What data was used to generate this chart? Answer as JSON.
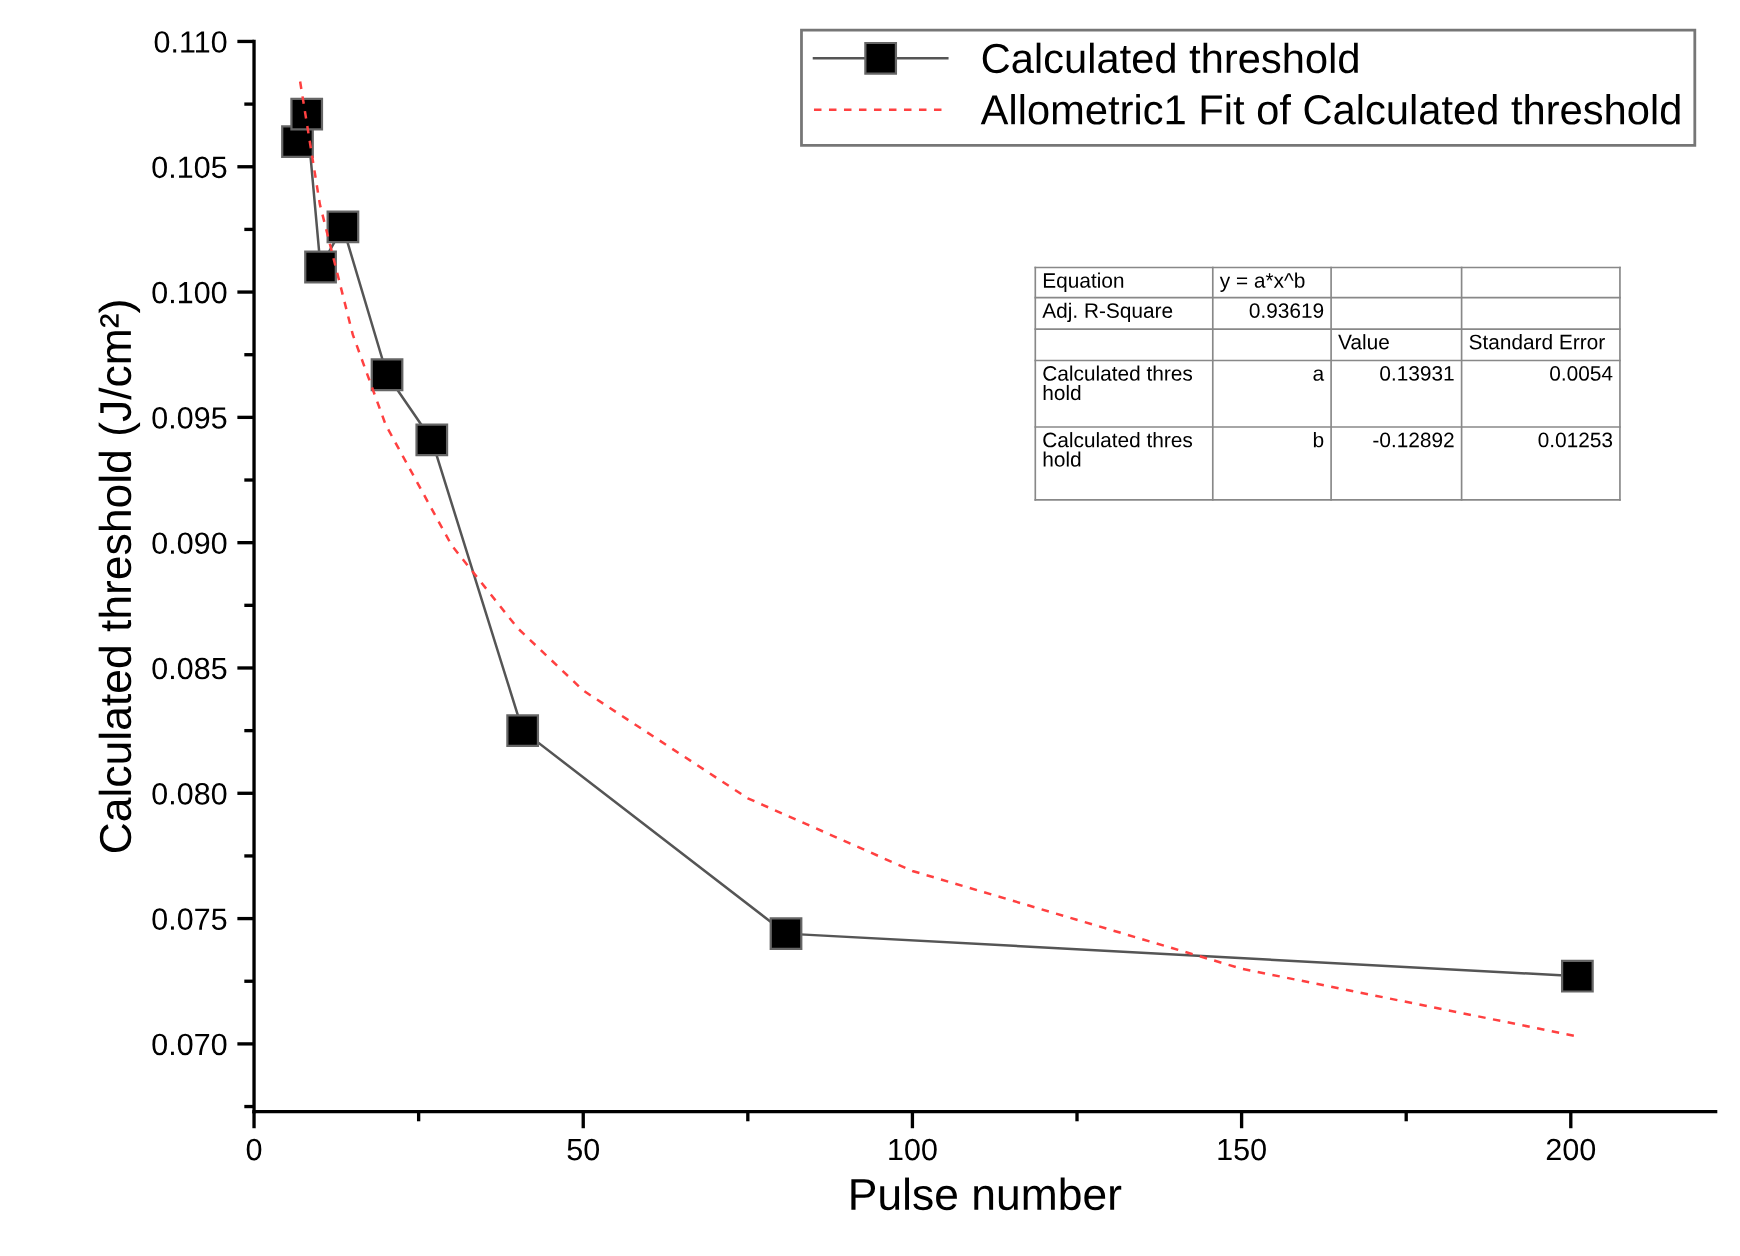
{
  "chart_data": {
    "type": "line",
    "xlabel": "Pulse number",
    "ylabel": "Calculated threshold (J/cm²)",
    "xlim": [
      0,
      222
    ],
    "xticks": [
      0,
      50,
      100,
      150,
      200
    ],
    "ylim": [
      0.0673,
      0.11
    ],
    "yticks": [
      {
        "value": 0.07,
        "label": "0.070"
      },
      0.075,
      {
        "value": 0.08,
        "label": "0.080"
      },
      0.085,
      {
        "value": 0.09,
        "label": "0.090"
      },
      0.095,
      {
        "value": 0.1,
        "label": "0.100"
      },
      0.105,
      {
        "value": 0.11,
        "label": "0.110"
      }
    ],
    "legend": "top right",
    "grid": false,
    "series": [
      {
        "name": "Calculated threshold",
        "color": "#000000",
        "marker": "square",
        "line_style": "solid",
        "x": [
          6.6,
          8.0,
          10.1,
          13.5,
          20.2,
          27.0,
          40.8,
          80.8,
          201
        ],
        "values": [
          0.106,
          0.1071,
          0.101,
          0.1026,
          0.0967,
          0.0941,
          0.0825,
          0.0744,
          0.0727
        ]
      },
      {
        "name": "Allometric1 Fit of Calculated threshold",
        "color": "#ff4040",
        "marker": "none",
        "line_style": "dashed",
        "x": [
          7,
          10,
          15,
          20,
          30,
          40,
          50,
          75,
          100,
          150,
          201
        ],
        "values": [
          0.1084,
          0.1035,
          0.0983,
          0.0947,
          0.0899,
          0.0866,
          0.0841,
          0.0798,
          0.0769,
          0.073,
          0.0703
        ]
      }
    ],
    "annotations": [
      "Equation",
      "y = a*x^b",
      "Adj. R-Square",
      "0.93619",
      "Value",
      "Standard Error",
      "Calculated thres\nhold",
      "a",
      "0.13931",
      "0.0054",
      "Calculated thres\nhold",
      "b",
      "-0.12892",
      "0.01253"
    ]
  }
}
